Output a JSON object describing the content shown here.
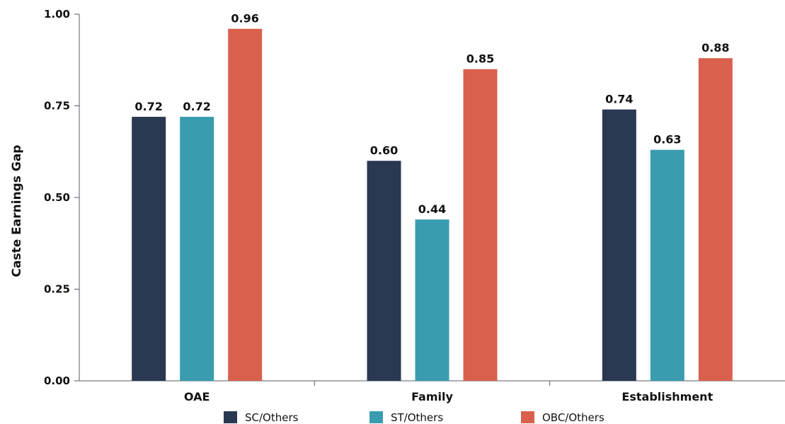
{
  "chart_data": {
    "type": "bar",
    "categories": [
      "OAE",
      "Family",
      "Establishment"
    ],
    "series": [
      {
        "name": "SC/Others",
        "values": [
          0.72,
          0.6,
          0.74
        ],
        "color": "#2a3852"
      },
      {
        "name": "ST/Others",
        "values": [
          0.72,
          0.44,
          0.63
        ],
        "color": "#3a9caf"
      },
      {
        "name": "OBC/Others",
        "values": [
          0.96,
          0.85,
          0.88
        ],
        "color": "#d9604c"
      }
    ],
    "data_labels": [
      [
        "0.72",
        "0.60",
        "0.74"
      ],
      [
        "0.72",
        "0.44",
        "0.63"
      ],
      [
        "0.96",
        "0.85",
        "0.88"
      ]
    ],
    "yticks": [
      0,
      0.25,
      0.5,
      0.75,
      1.0
    ],
    "ytick_labels": [
      "0.00",
      "0.25",
      "0.50",
      "0.75",
      "1.00"
    ],
    "ylabel": "Caste Earnings Gap",
    "xlabel": "",
    "ylim": [
      0,
      1.0
    ],
    "grid": false,
    "legend_position": "bottom"
  }
}
